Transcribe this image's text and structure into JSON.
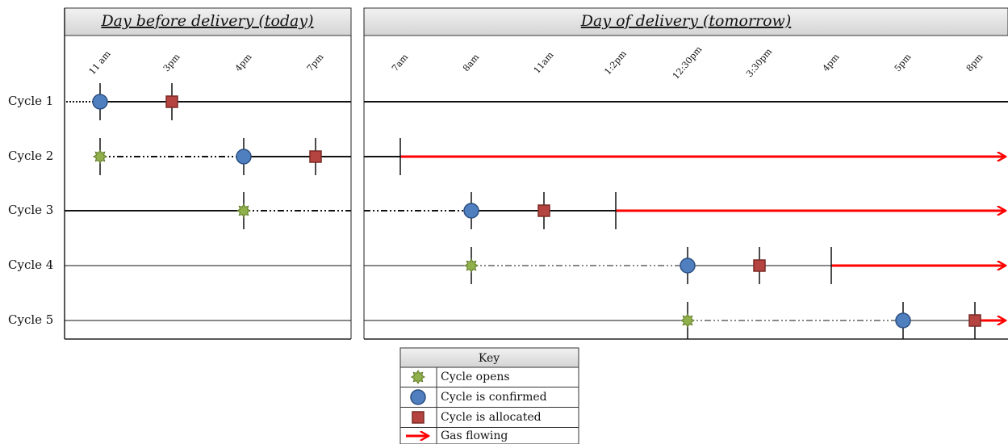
{
  "panels": [
    {
      "title": "Day before delivery (today)",
      "times": [
        "11 am",
        "3pm",
        "4pm",
        "7pm"
      ]
    },
    {
      "title": "Day of delivery (tomorrow)",
      "times": [
        "7am",
        "8am",
        "11am",
        "1:2pm",
        "12:30pm",
        "3:30pm",
        "4pm",
        "5pm",
        "8pm"
      ]
    }
  ],
  "cycles": [
    "Cycle 1",
    "Cycle 2",
    "Cycle 3",
    "Cycle 4",
    "Cycle 5"
  ],
  "key": {
    "title": "Key",
    "entries": [
      "Cycle opens",
      "Cycle is confirmed",
      "Cycle is allocated",
      "Gas flowing"
    ]
  }
}
